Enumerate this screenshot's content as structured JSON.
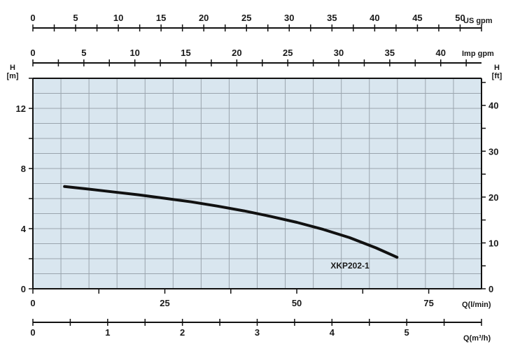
{
  "chart_data": {
    "type": "line",
    "plot_background": "#d9e6ef",
    "curve_color": "#111111",
    "grid": true,
    "series": [
      {
        "name": "XKP202-1",
        "x": [
          6,
          10,
          15,
          20,
          25,
          30,
          35,
          40,
          45,
          50,
          55,
          60,
          65,
          69
        ],
        "y": [
          6.8,
          6.65,
          6.45,
          6.25,
          6.02,
          5.78,
          5.5,
          5.18,
          4.82,
          4.42,
          3.95,
          3.4,
          2.72,
          2.1
        ]
      }
    ],
    "axes": {
      "q_lmin": {
        "label": "Q(l/min)",
        "range": [
          0,
          85
        ],
        "ticks": [
          0,
          25,
          50,
          75
        ],
        "tick_labels": [
          "0",
          "25",
          "50",
          "75"
        ]
      },
      "q_m3h": {
        "label": "Q(m³/h)",
        "range": [
          0,
          6
        ],
        "ticks": [
          0,
          1,
          2,
          3,
          4,
          5
        ],
        "tick_labels": [
          "0",
          "1",
          "2",
          "3",
          "4",
          "5"
        ]
      },
      "us_gpm": {
        "label": "US gpm",
        "range": [
          0,
          52.5
        ],
        "ticks": [
          0,
          5,
          10,
          15,
          20,
          25,
          30,
          35,
          40,
          45,
          50
        ],
        "tick_labels": [
          "0",
          "5",
          "10",
          "15",
          "20",
          "25",
          "30",
          "35",
          "40",
          "45",
          "50"
        ]
      },
      "imp_gpm": {
        "label": "Imp gpm",
        "range": [
          0,
          44
        ],
        "ticks": [
          0,
          5,
          10,
          15,
          20,
          25,
          30,
          35,
          40
        ],
        "tick_labels": [
          "0",
          "5",
          "10",
          "15",
          "20",
          "25",
          "30",
          "35",
          "40"
        ]
      },
      "h_m": {
        "label_top": "H",
        "label_unit": "[m]",
        "range": [
          0,
          14
        ],
        "ticks": [
          0,
          4,
          8,
          12
        ],
        "tick_labels": [
          "0",
          "4",
          "8",
          "12"
        ]
      },
      "h_ft": {
        "label_top": "H",
        "label_unit": "[ft]",
        "range": [
          0,
          45.9
        ],
        "ticks": [
          0,
          10,
          20,
          30,
          40
        ],
        "tick_labels": [
          "0",
          "10",
          "20",
          "30",
          "40"
        ]
      }
    }
  }
}
